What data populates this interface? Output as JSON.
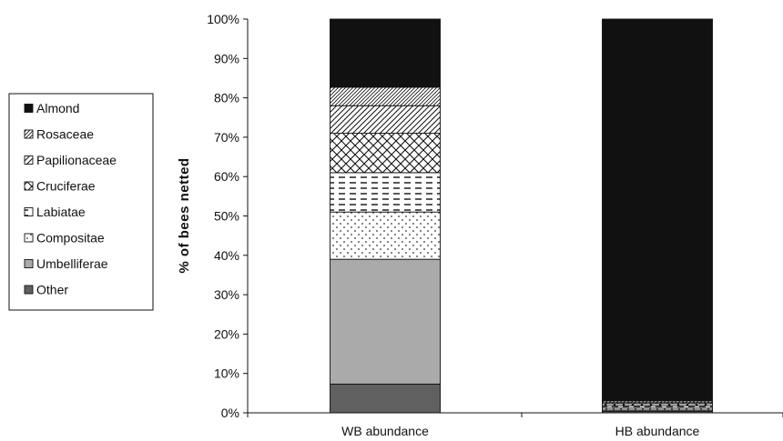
{
  "chart_data": {
    "type": "bar",
    "stacked": true,
    "normalized_percent": true,
    "categories": [
      "WB abundance",
      "HB abundance"
    ],
    "series": [
      {
        "name": "Other",
        "values": [
          7.3,
          0.4
        ],
        "fill": "#606060",
        "pattern": "solid"
      },
      {
        "name": "Umbelliferae",
        "values": [
          31.7,
          0.3
        ],
        "fill": "#aaaaaa",
        "pattern": "solid"
      },
      {
        "name": "Compositae",
        "values": [
          12.0,
          0.5
        ],
        "fill": "#ffffff",
        "pattern": "dots"
      },
      {
        "name": "Labiatae",
        "values": [
          10.0,
          0.6
        ],
        "fill": "#ffffff",
        "pattern": "dashes"
      },
      {
        "name": "Cruciferae",
        "values": [
          10.0,
          0.5
        ],
        "fill": "#ffffff",
        "pattern": "crosshatch"
      },
      {
        "name": "Papilionaceae",
        "values": [
          7.0,
          0.3
        ],
        "fill": "#ffffff",
        "pattern": "diagonal"
      },
      {
        "name": "Rosaceae",
        "values": [
          4.7,
          0.4
        ],
        "fill": "#ffffff",
        "pattern": "fine-diagonal"
      },
      {
        "name": "Almond",
        "values": [
          17.3,
          97.0
        ],
        "fill": "#111111",
        "pattern": "solid"
      }
    ],
    "legend_order": [
      "Almond",
      "Rosaceae",
      "Papilionaceae",
      "Cruciferae",
      "Labiatae",
      "Compositae",
      "Umbelliferae",
      "Other"
    ],
    "legend_position": "left",
    "ylabel": "% of bees netted",
    "xlabel": "",
    "ylim": [
      0,
      100
    ],
    "yticks": [
      "0%",
      "10%",
      "20%",
      "30%",
      "40%",
      "50%",
      "60%",
      "70%",
      "80%",
      "90%",
      "100%"
    ],
    "grid": false
  }
}
